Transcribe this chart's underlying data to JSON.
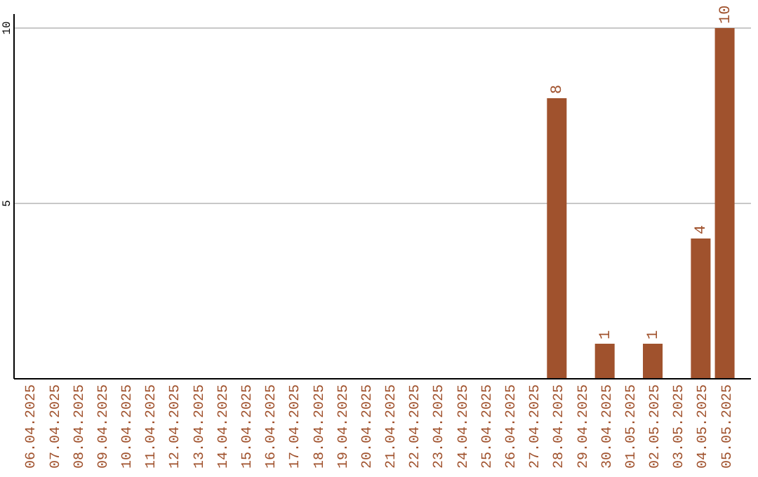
{
  "chart_data": {
    "type": "bar",
    "categories": [
      "06.04.2025",
      "07.04.2025",
      "08.04.2025",
      "09.04.2025",
      "10.04.2025",
      "11.04.2025",
      "12.04.2025",
      "13.04.2025",
      "14.04.2025",
      "15.04.2025",
      "16.04.2025",
      "17.04.2025",
      "18.04.2025",
      "19.04.2025",
      "20.04.2025",
      "21.04.2025",
      "22.04.2025",
      "23.04.2025",
      "24.04.2025",
      "25.04.2025",
      "26.04.2025",
      "27.04.2025",
      "28.04.2025",
      "29.04.2025",
      "30.04.2025",
      "01.05.2025",
      "02.05.2025",
      "03.05.2025",
      "04.05.2025",
      "05.05.2025"
    ],
    "values": [
      0,
      0,
      0,
      0,
      0,
      0,
      0,
      0,
      0,
      0,
      0,
      0,
      0,
      0,
      0,
      0,
      0,
      0,
      0,
      0,
      0,
      0,
      8,
      0,
      1,
      0,
      1,
      0,
      4,
      10
    ],
    "value_labels": [
      null,
      null,
      null,
      null,
      null,
      null,
      null,
      null,
      null,
      null,
      null,
      null,
      null,
      null,
      null,
      null,
      null,
      null,
      null,
      null,
      null,
      null,
      "8",
      null,
      "1",
      null,
      "1",
      null,
      "4",
      "10"
    ],
    "color": "#a0522d",
    "ylim": [
      0,
      10.4
    ],
    "yticks": [
      5,
      10
    ],
    "grid": "y"
  }
}
